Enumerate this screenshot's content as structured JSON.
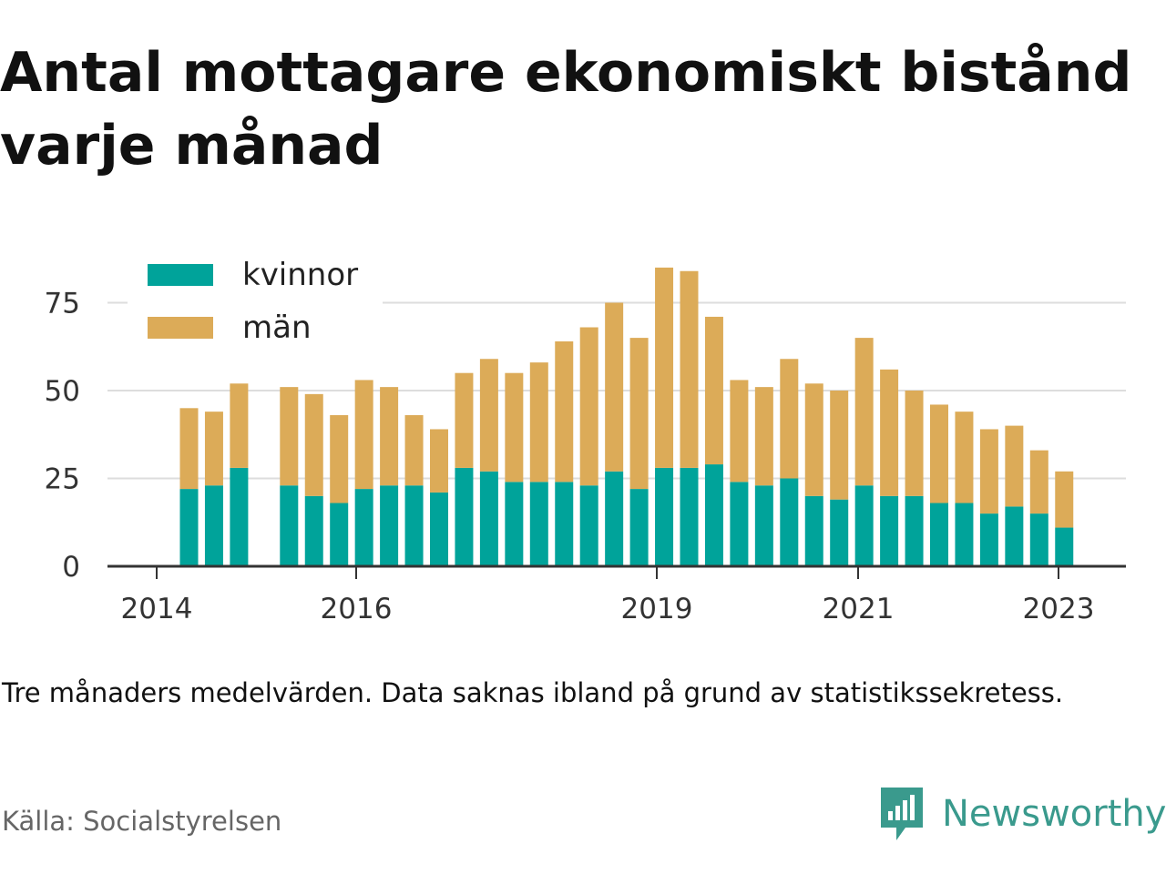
{
  "title": "Antal mottagare ekonomiskt bistånd varje månad",
  "note": "Tre månaders medelvärden. Data saknas ibland på grund av statistikssekretess.",
  "source": "Källa: Socialstyrelsen",
  "brand": "Newsworthy",
  "colors": {
    "kvinnor": "#00a39a",
    "man": "#dcab58",
    "grid": "#dddddd",
    "axis": "#333333",
    "brand": "#3a9a8d"
  },
  "chart_data": {
    "type": "bar",
    "stacked": true,
    "ylim": [
      0,
      88
    ],
    "yticks": [
      0,
      25,
      50,
      75
    ],
    "xticks": [
      "2014",
      "2016",
      "2019",
      "2021",
      "2023"
    ],
    "grid": true,
    "legend_position": "top-left",
    "series": [
      {
        "name": "kvinnor",
        "values": [
          22,
          23,
          28,
          null,
          23,
          20,
          18,
          22,
          23,
          23,
          21,
          28,
          27,
          24,
          24,
          24,
          23,
          27,
          22,
          28,
          28,
          29,
          24,
          23,
          25,
          20,
          19,
          23,
          20,
          20,
          18,
          18,
          15,
          17,
          15,
          11
        ]
      },
      {
        "name": "män",
        "values": [
          23,
          21,
          24,
          null,
          28,
          29,
          25,
          31,
          28,
          20,
          18,
          27,
          32,
          31,
          34,
          40,
          45,
          48,
          43,
          57,
          56,
          42,
          29,
          28,
          34,
          32,
          31,
          42,
          36,
          30,
          28,
          26,
          24,
          23,
          18,
          16
        ]
      }
    ]
  }
}
